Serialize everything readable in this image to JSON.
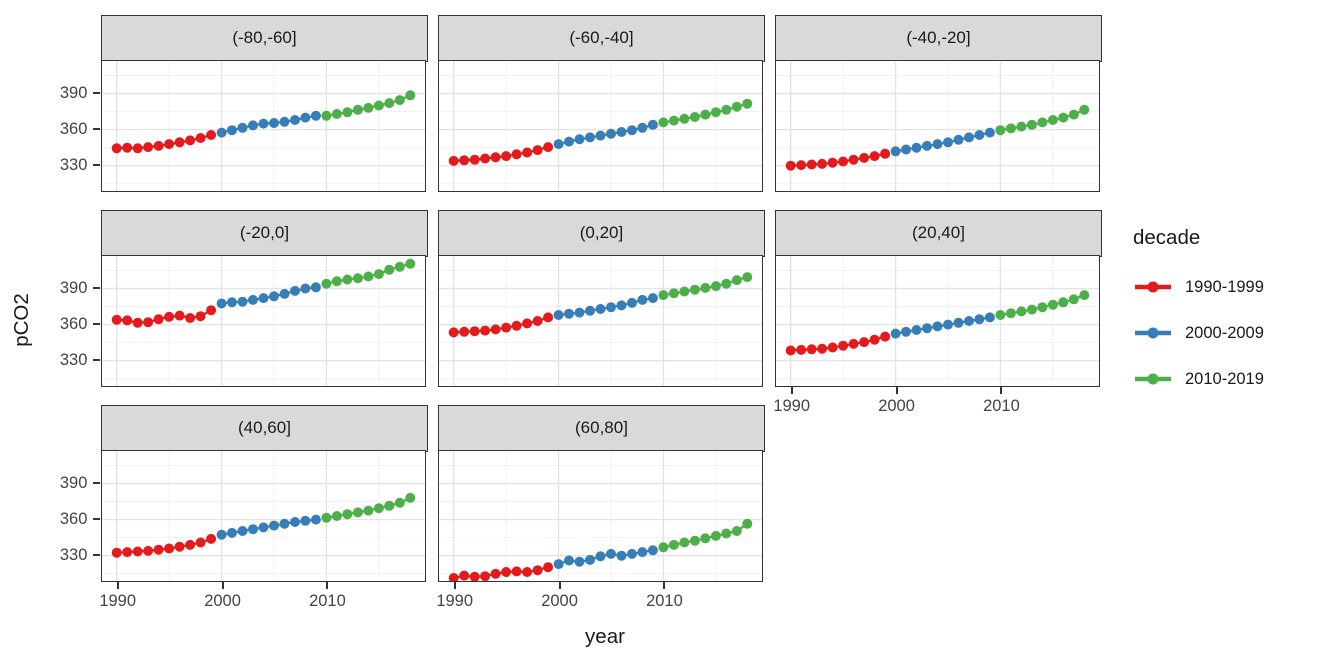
{
  "chart_data": {
    "type": "scatter",
    "title": "",
    "xlabel": "year",
    "ylabel": "pCO2",
    "x_ticks": [
      1990,
      2000,
      2010
    ],
    "y_ticks": [
      330,
      360,
      390
    ],
    "x_minor": [
      1995,
      2005,
      2015
    ],
    "y_minor": [
      315,
      345,
      375,
      405
    ],
    "x_range": [
      1988.6,
      2019.4
    ],
    "y_range": [
      309,
      417
    ],
    "grid": "major-and-minor",
    "legend_position": "right",
    "years": [
      1990,
      1991,
      1992,
      1993,
      1994,
      1995,
      1996,
      1997,
      1998,
      1999,
      2000,
      2001,
      2002,
      2003,
      2004,
      2005,
      2006,
      2007,
      2008,
      2009,
      2010,
      2011,
      2012,
      2013,
      2014,
      2015,
      2016,
      2017,
      2018
    ],
    "legend": {
      "title": "decade",
      "entries": [
        {
          "label": "1990-1999",
          "color": "#E41A1C",
          "year_start": 1990,
          "year_end": 1999
        },
        {
          "label": "2000-2009",
          "color": "#377EB8",
          "year_start": 2000,
          "year_end": 2009
        },
        {
          "label": "2010-2019",
          "color": "#4DAF4A",
          "year_start": 2010,
          "year_end": 2019
        }
      ]
    },
    "facets": [
      {
        "label": "(-80,-60]",
        "values": [
          344.5,
          345,
          344.5,
          345.5,
          346.5,
          348,
          349.5,
          351,
          353,
          355.5,
          357.5,
          359.5,
          361.5,
          363.5,
          365,
          365.5,
          366.5,
          368,
          370,
          371.5,
          371.5,
          373,
          374.5,
          376.5,
          378,
          380,
          382,
          384.5,
          388.5
        ]
      },
      {
        "label": "(-60,-40]",
        "values": [
          334,
          334.5,
          335,
          336,
          337,
          338,
          339.5,
          341,
          343,
          345.5,
          348,
          350,
          352,
          353.5,
          355,
          356.5,
          358,
          359.5,
          361.5,
          364,
          366,
          367.5,
          369,
          370.5,
          372.5,
          374.5,
          376.5,
          379,
          381.5
        ]
      },
      {
        "label": "(-40,-20]",
        "values": [
          330,
          330.5,
          331,
          331.5,
          332.5,
          333.5,
          335,
          336.5,
          338,
          340,
          342,
          343.5,
          345,
          346.5,
          348,
          349.5,
          351.5,
          353.5,
          355.5,
          357.5,
          359.5,
          361,
          362.5,
          364,
          366,
          368,
          370,
          372.5,
          376.5
        ]
      },
      {
        "label": "(-20,0]",
        "values": [
          364,
          363.5,
          361.5,
          362,
          364.5,
          366.5,
          367.5,
          365.5,
          367,
          372,
          377.5,
          378.5,
          379,
          380.5,
          382,
          383.5,
          385.5,
          388,
          390,
          391,
          394,
          396,
          397.5,
          398.5,
          400,
          402,
          405.5,
          408,
          410.5
        ]
      },
      {
        "label": "(0,20]",
        "values": [
          353.5,
          354,
          354.5,
          355,
          356,
          357.5,
          359,
          361,
          363,
          366,
          368,
          369,
          370,
          371.5,
          373,
          374.5,
          376,
          378,
          380.5,
          382,
          384.5,
          386,
          387.5,
          389,
          390.5,
          392,
          394,
          397,
          399.5
        ]
      },
      {
        "label": "(20,40]",
        "values": [
          338.5,
          339,
          339.5,
          340,
          341,
          342.5,
          344,
          345.5,
          347.5,
          350,
          352.5,
          354,
          355.5,
          357,
          358.5,
          360,
          361.5,
          363,
          364.5,
          366,
          368,
          369.5,
          371,
          372.5,
          374.5,
          376.5,
          378.5,
          381,
          384.5
        ]
      },
      {
        "label": "(40,60]",
        "values": [
          332.5,
          333,
          333.5,
          334,
          335,
          336,
          337.5,
          339,
          341,
          344,
          347.5,
          349,
          350.5,
          352,
          353.5,
          355,
          356.5,
          358,
          359,
          360,
          361.5,
          363,
          364.5,
          366,
          367.5,
          369.5,
          371.5,
          374,
          378
        ]
      },
      {
        "label": "(60,80]",
        "values": [
          311.5,
          313.5,
          312.5,
          313,
          315,
          316.5,
          317,
          316.5,
          318,
          320.5,
          323,
          326,
          325,
          326.5,
          329.5,
          331.5,
          330,
          331.5,
          333,
          334.5,
          337,
          339,
          341,
          342.5,
          344.5,
          346.5,
          348.5,
          350.5,
          356.5
        ]
      }
    ]
  }
}
